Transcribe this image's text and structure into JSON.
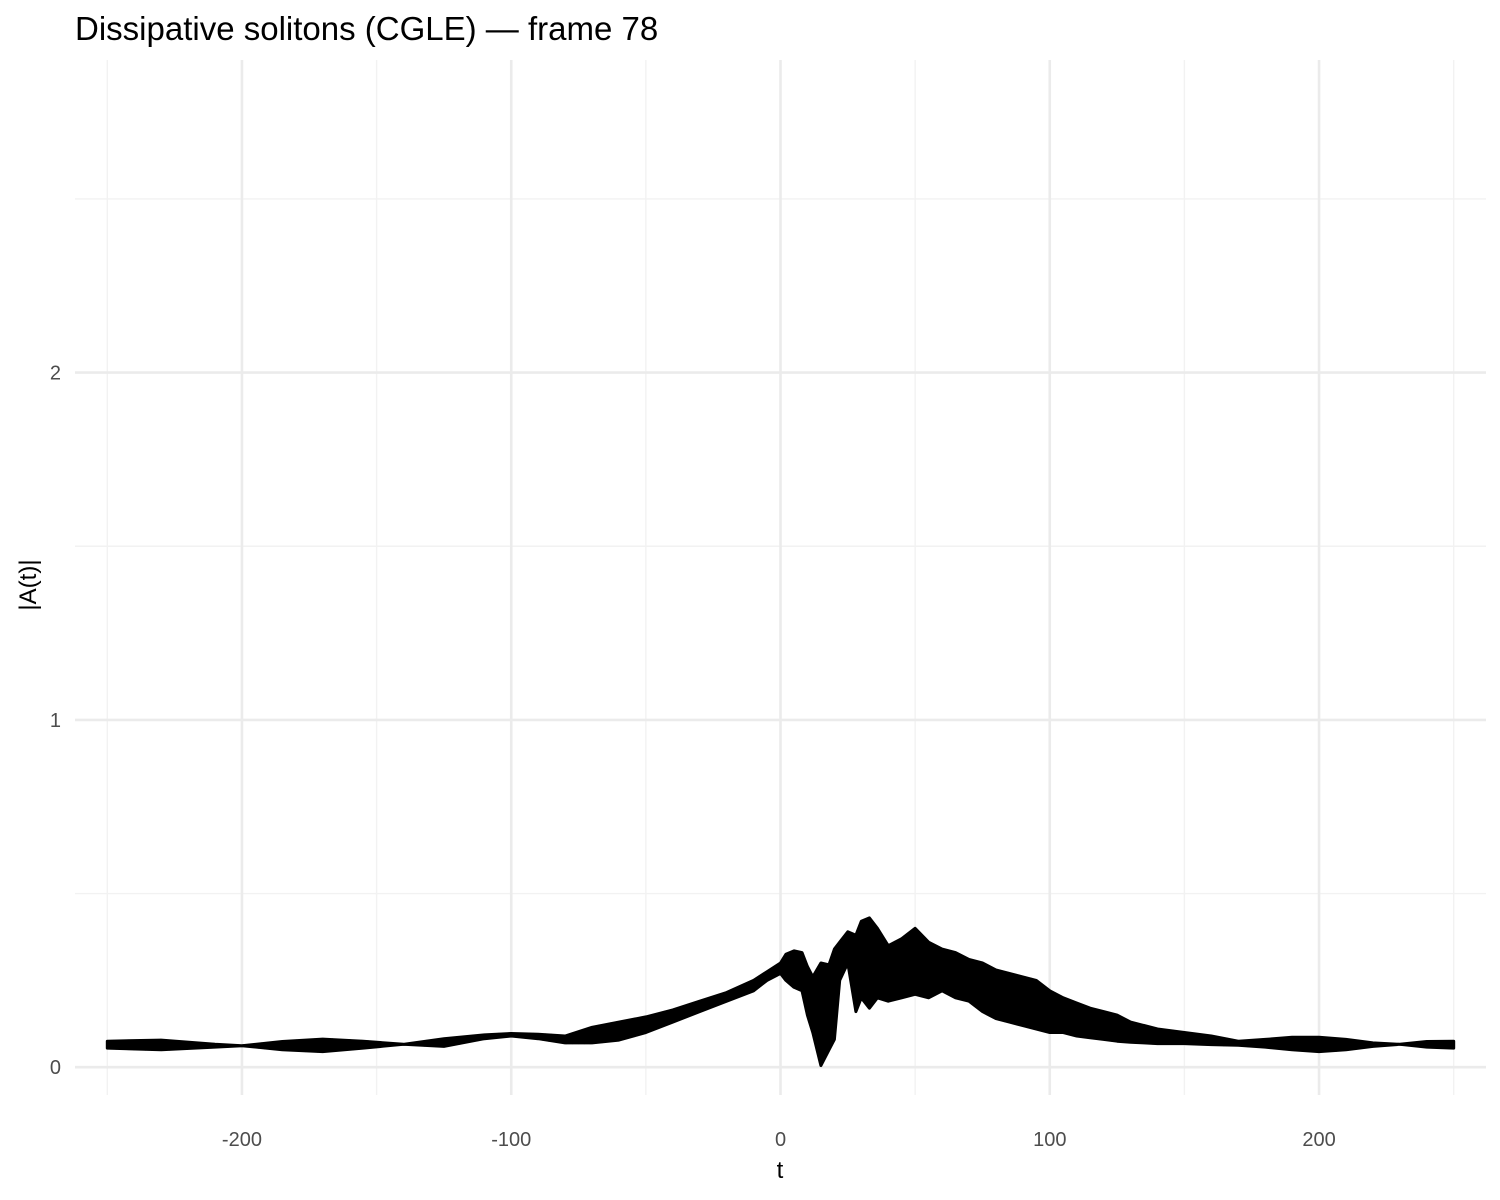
{
  "chart_data": {
    "type": "line",
    "title": "Dissipative solitons (CGLE) — frame 78",
    "xlabel": "t",
    "ylabel": "|A(t)|",
    "xlim": [
      -262,
      262
    ],
    "ylim": [
      -0.08,
      2.9
    ],
    "x_ticks": [
      -200,
      -100,
      0,
      100,
      200
    ],
    "y_ticks": [
      0,
      1,
      2
    ],
    "x_tick_labels": [
      "-200",
      "-100",
      "0",
      "100",
      "200"
    ],
    "y_tick_labels": [
      "0",
      "1",
      "2"
    ],
    "grid": true,
    "line_color": "#000000",
    "series": [
      {
        "note_envelope": "rapidly oscillating curve shown as a filled band between lower and upper envelopes",
        "t": [
          -250,
          -230,
          -210,
          -200,
          -185,
          -170,
          -155,
          -140,
          -125,
          -110,
          -100,
          -90,
          -80,
          -70,
          -60,
          -50,
          -40,
          -30,
          -20,
          -10,
          -5,
          0,
          2,
          5,
          8,
          10,
          12,
          15,
          18,
          20,
          22,
          25,
          28,
          30,
          33,
          36,
          40,
          45,
          50,
          55,
          60,
          65,
          70,
          75,
          80,
          85,
          90,
          95,
          100,
          105,
          110,
          115,
          120,
          125,
          130,
          135,
          140,
          145,
          150,
          160,
          170,
          180,
          190,
          200,
          210,
          220,
          230,
          240,
          250
        ],
        "upper": [
          0.075,
          0.078,
          0.066,
          0.062,
          0.074,
          0.081,
          0.075,
          0.066,
          0.082,
          0.093,
          0.097,
          0.095,
          0.09,
          0.115,
          0.13,
          0.145,
          0.165,
          0.19,
          0.215,
          0.25,
          0.275,
          0.3,
          0.325,
          0.335,
          0.33,
          0.29,
          0.26,
          0.3,
          0.295,
          0.34,
          0.36,
          0.39,
          0.38,
          0.42,
          0.43,
          0.4,
          0.35,
          0.37,
          0.4,
          0.36,
          0.34,
          0.33,
          0.31,
          0.3,
          0.28,
          0.27,
          0.26,
          0.25,
          0.22,
          0.2,
          0.185,
          0.17,
          0.16,
          0.15,
          0.13,
          0.12,
          0.11,
          0.105,
          0.1,
          0.09,
          0.075,
          0.08,
          0.086,
          0.086,
          0.08,
          0.07,
          0.066,
          0.074,
          0.075
        ],
        "lower": [
          0.055,
          0.05,
          0.058,
          0.062,
          0.05,
          0.045,
          0.055,
          0.066,
          0.06,
          0.082,
          0.09,
          0.082,
          0.07,
          0.07,
          0.078,
          0.1,
          0.13,
          0.16,
          0.19,
          0.22,
          0.25,
          0.27,
          0.25,
          0.23,
          0.22,
          0.15,
          0.1,
          0.005,
          0.05,
          0.08,
          0.25,
          0.3,
          0.16,
          0.2,
          0.17,
          0.2,
          0.19,
          0.2,
          0.21,
          0.2,
          0.22,
          0.2,
          0.19,
          0.16,
          0.14,
          0.13,
          0.12,
          0.11,
          0.1,
          0.1,
          0.09,
          0.085,
          0.08,
          0.075,
          0.072,
          0.07,
          0.068,
          0.068,
          0.068,
          0.065,
          0.063,
          0.058,
          0.05,
          0.045,
          0.05,
          0.06,
          0.066,
          0.058,
          0.055
        ]
      }
    ]
  }
}
